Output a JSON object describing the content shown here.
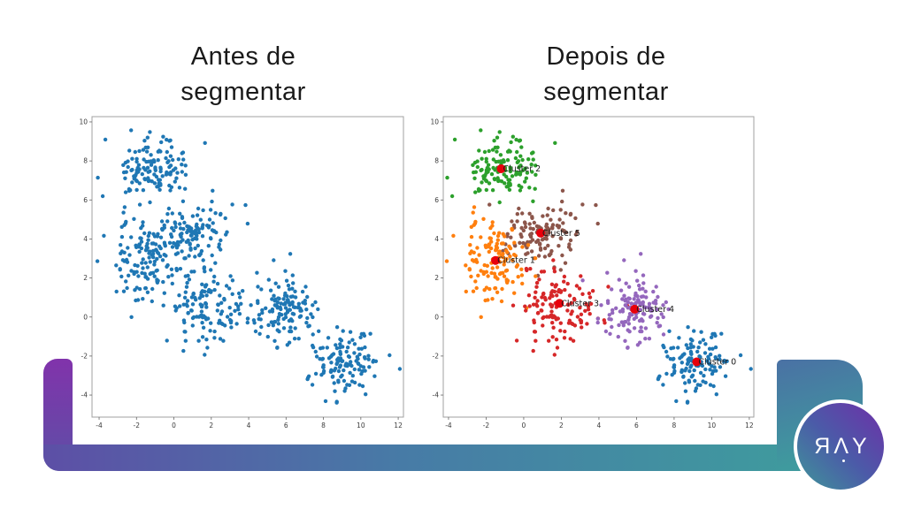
{
  "titles": {
    "before": {
      "line1": "Antes de",
      "line2": "segmentar"
    },
    "after": {
      "line1": "Depois de",
      "line2": "segmentar"
    }
  },
  "logo": {
    "text": "ЯΛY"
  },
  "colors": {
    "band_purple": "#8133ab",
    "band_indigo": "#5d4fa6",
    "band_blue": "#477ba6",
    "band_teal": "#3f9a9e",
    "centroid_red": "#e8000b",
    "spine": "#a0a0a0",
    "tick_text": "#3a3a3a",
    "cluster_label_text": "#1b1b1b",
    "unsegmented_blue": "#1f77b4"
  },
  "chart_data": [
    {
      "type": "scatter",
      "title": "Antes de segmentar",
      "xlabel": "",
      "ylabel": "",
      "xticks": [
        -4,
        -2,
        0,
        2,
        4,
        6,
        8,
        10,
        12
      ],
      "yticks": [
        -4,
        -2,
        0,
        2,
        4,
        6,
        8,
        10
      ],
      "xlim": [
        -4.38,
        12.28
      ],
      "ylim": [
        -5.13,
        10.27
      ],
      "grid": false,
      "legend": "none",
      "point_radius_px": 2.2,
      "clusters": [
        {
          "color": "#1f77b4",
          "cx": -1.2,
          "cy": 7.6,
          "sx": 1.0,
          "sy": 0.78,
          "n": 130
        },
        {
          "color": "#1f77b4",
          "cx": 0.9,
          "cy": 4.3,
          "sx": 1.05,
          "sy": 0.8,
          "n": 130
        },
        {
          "color": "#1f77b4",
          "cx": -1.5,
          "cy": 2.9,
          "sx": 0.85,
          "sy": 1.05,
          "n": 130
        },
        {
          "color": "#1f77b4",
          "cx": 1.9,
          "cy": 0.7,
          "sx": 1.05,
          "sy": 1.0,
          "n": 130
        },
        {
          "color": "#1f77b4",
          "cx": 5.9,
          "cy": 0.4,
          "sx": 0.9,
          "sy": 0.95,
          "n": 130
        },
        {
          "color": "#1f77b4",
          "cx": 9.2,
          "cy": -2.3,
          "sx": 0.95,
          "sy": 0.85,
          "n": 130
        }
      ],
      "centroids": []
    },
    {
      "type": "scatter",
      "title": "Depois de segmentar",
      "xlabel": "",
      "ylabel": "",
      "xticks": [
        -4,
        -2,
        0,
        2,
        4,
        6,
        8,
        10,
        12
      ],
      "yticks": [
        -4,
        -2,
        0,
        2,
        4,
        6,
        8,
        10
      ],
      "xlim": [
        -4.28,
        12.24
      ],
      "ylim": [
        -5.13,
        10.27
      ],
      "grid": false,
      "legend": "none",
      "point_radius_px": 2.2,
      "clusters": [
        {
          "label": "Cluster 2",
          "color": "#2ca02c",
          "cx": -1.2,
          "cy": 7.6,
          "sx": 1.0,
          "sy": 0.78,
          "n": 130
        },
        {
          "label": "Cluster 5",
          "color": "#8c564b",
          "cx": 0.9,
          "cy": 4.3,
          "sx": 1.05,
          "sy": 0.8,
          "n": 130
        },
        {
          "label": "Cluster 1",
          "color": "#ff7f0e",
          "cx": -1.5,
          "cy": 2.9,
          "sx": 0.85,
          "sy": 1.05,
          "n": 130
        },
        {
          "label": "Cluster 3",
          "color": "#d62728",
          "cx": 1.9,
          "cy": 0.7,
          "sx": 1.05,
          "sy": 1.0,
          "n": 130
        },
        {
          "label": "Cluster 4",
          "color": "#9467bd",
          "cx": 5.9,
          "cy": 0.4,
          "sx": 0.9,
          "sy": 0.95,
          "n": 130
        },
        {
          "label": "Cluster 0",
          "color": "#1f77b4",
          "cx": 9.2,
          "cy": -2.3,
          "sx": 0.95,
          "sy": 0.85,
          "n": 130
        }
      ],
      "centroids": [
        {
          "label": "Cluster 2",
          "x": -1.2,
          "y": 7.6
        },
        {
          "label": "Cluster 5",
          "x": 0.9,
          "y": 4.3
        },
        {
          "label": "Cluster 1",
          "x": -1.5,
          "y": 2.9
        },
        {
          "label": "Cluster 3",
          "x": 1.9,
          "y": 0.7
        },
        {
          "label": "Cluster 4",
          "x": 5.9,
          "y": 0.4
        },
        {
          "label": "Cluster 0",
          "x": 9.2,
          "y": -2.3
        }
      ]
    }
  ]
}
